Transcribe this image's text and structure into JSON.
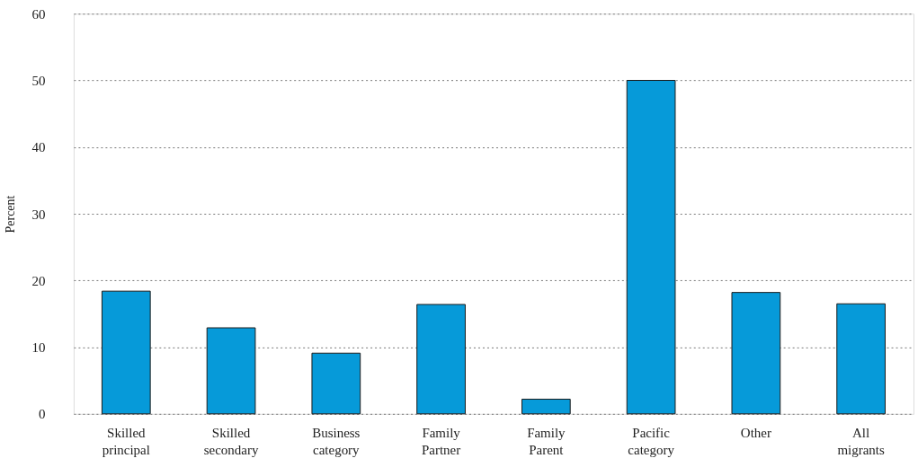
{
  "chart_data": {
    "type": "bar",
    "ylabel": "Percent",
    "categories": [
      "Skilled principal",
      "Skilled secondary",
      "Business category",
      "Family Partner",
      "Family Parent",
      "Pacific category",
      "Other",
      "All migrants"
    ],
    "values": [
      18.4,
      12.9,
      9.1,
      16.4,
      2.2,
      50,
      18.2,
      16.5
    ],
    "color": "#069ad9",
    "ylim": [
      0,
      60
    ],
    "yticks": [
      0,
      10,
      20,
      30,
      40,
      50,
      60
    ],
    "grid": "y"
  }
}
